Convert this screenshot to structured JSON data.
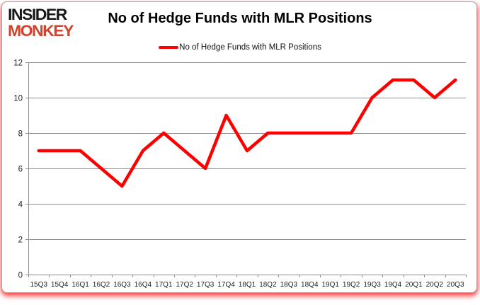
{
  "brand": {
    "logo_line1": "INSIDER",
    "logo_line2": "MONKEY",
    "logo_color_line1": "#181818",
    "logo_color_line2": "#d0432c"
  },
  "header": {
    "title": "No of Hedge Funds with MLR Positions"
  },
  "legend": {
    "label": "No of Hedge Funds with MLR Positions",
    "marker_color": "#ff0000",
    "position": "top"
  },
  "chart_data": {
    "type": "line",
    "title": "No of Hedge Funds with MLR Positions",
    "categories": [
      "15Q3",
      "15Q4",
      "16Q1",
      "16Q2",
      "16Q3",
      "16Q4",
      "17Q1",
      "17Q2",
      "17Q3",
      "17Q4",
      "18Q1",
      "18Q2",
      "18Q3",
      "18Q4",
      "19Q1",
      "19Q2",
      "19Q3",
      "19Q4",
      "20Q1",
      "20Q2",
      "20Q3"
    ],
    "series": [
      {
        "name": "No of Hedge Funds with MLR Positions",
        "color": "#ff0000",
        "values": [
          7,
          7,
          7,
          6,
          5,
          7,
          8,
          7,
          6,
          9,
          7,
          8,
          8,
          8,
          8,
          8,
          10,
          11,
          11,
          10,
          11
        ]
      }
    ],
    "xlabel": "",
    "ylabel": "",
    "ylim": [
      0,
      12
    ],
    "ytick_interval": 2,
    "yticks": [
      0,
      2,
      4,
      6,
      8,
      10,
      12
    ],
    "grid": "horizontal",
    "legend_position": "top"
  },
  "colors": {
    "grid": "#8c8c8c",
    "axis": "#8c8c8c",
    "tick_label": "#1f1f1f",
    "background": "#ffffff",
    "card_border": "#a6a6a6",
    "glow": "#ff0000",
    "series": "#ff0000"
  }
}
